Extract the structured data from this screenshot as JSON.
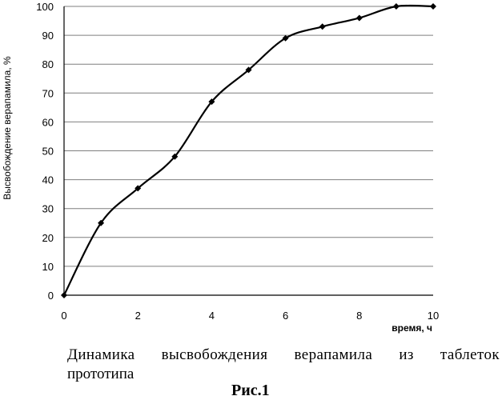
{
  "chart_data": {
    "type": "line",
    "title": "",
    "xlabel": "время, ч",
    "ylabel": "Высвобождение верапамила, %",
    "xlim": [
      0,
      10
    ],
    "ylim": [
      0,
      100
    ],
    "x_ticks": [
      "0",
      "2",
      "4",
      "6",
      "8",
      "10"
    ],
    "y_ticks": [
      "0",
      "10",
      "20",
      "30",
      "40",
      "50",
      "60",
      "70",
      "80",
      "90",
      "100"
    ],
    "grid": "horizontal",
    "series": [
      {
        "x": [
          0,
          1,
          2,
          3,
          4,
          5,
          6,
          7,
          8,
          9,
          10
        ],
        "y": [
          0,
          25,
          37,
          48,
          67,
          78,
          89,
          93,
          96,
          100,
          100
        ]
      }
    ],
    "line_color": "#000000"
  },
  "caption": {
    "line1": "Динамика высвобождения верапамила из таблеток",
    "line2": "прототипа",
    "figure_label": "Рис.1"
  }
}
